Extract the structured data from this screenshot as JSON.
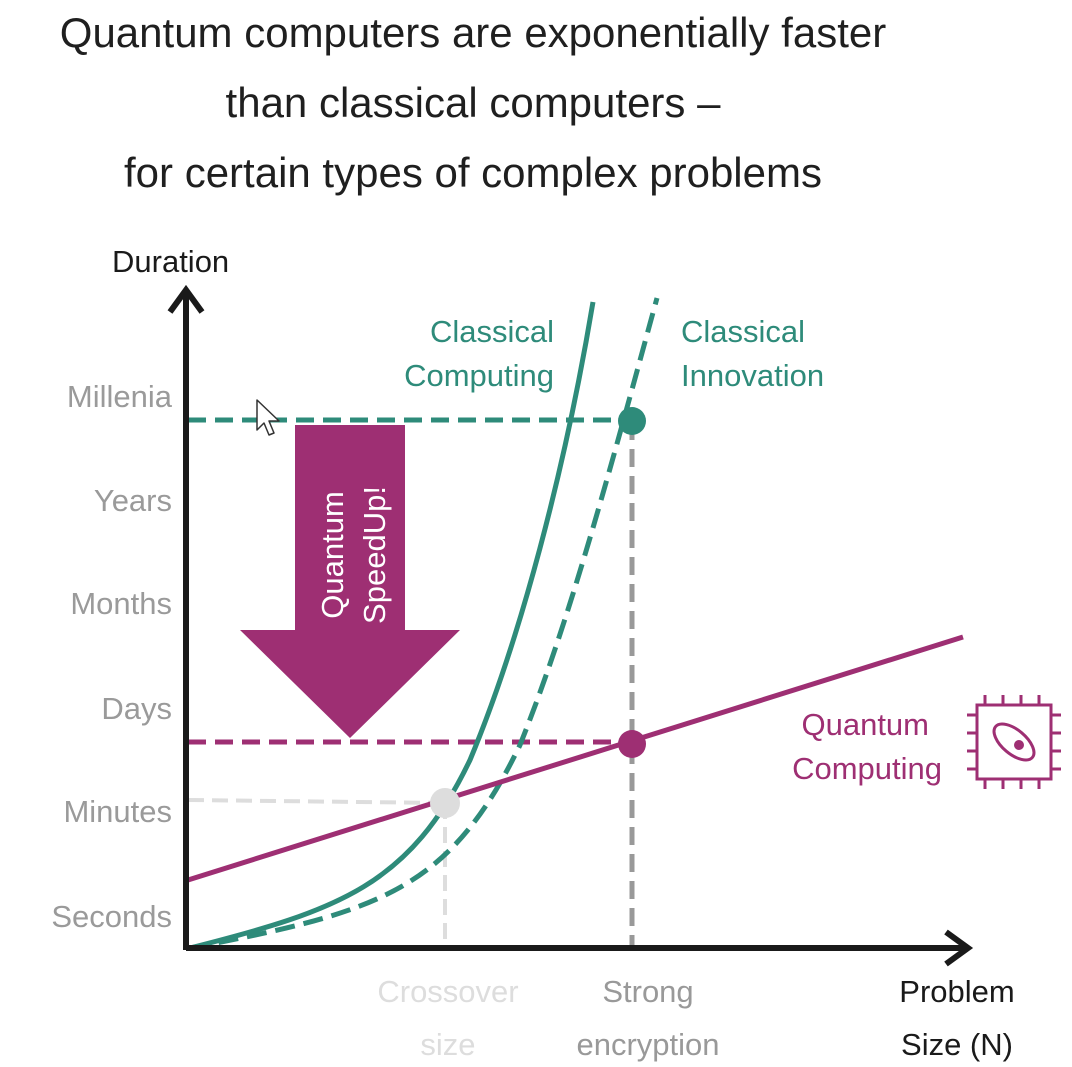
{
  "title": {
    "line1": "Quantum computers are exponentially faster",
    "line2": "than classical computers –",
    "line3": "for certain types of complex problems"
  },
  "axes": {
    "y_label": "Duration",
    "x_label_line1": "Problem",
    "x_label_line2": "Size (N)",
    "y_ticks": [
      "Millenia",
      "Years",
      "Months",
      "Days",
      "Minutes",
      "Seconds"
    ]
  },
  "x_markers": {
    "crossover_line1": "Crossover",
    "crossover_line2": "size",
    "encryption_line1": "Strong",
    "encryption_line2": "encryption"
  },
  "curves": {
    "classical_computing_line1": "Classical",
    "classical_computing_line2": "Computing",
    "classical_innovation_line1": "Classical",
    "classical_innovation_line2": "Innovation",
    "quantum_computing_line1": "Quantum",
    "quantum_computing_line2": "Computing"
  },
  "speedup_arrow": {
    "line1": "Quantum",
    "line2": "SpeedUp!"
  },
  "icons": {
    "quantum_chip": "quantum-chip-icon",
    "cursor": "mouse-cursor-icon"
  },
  "colors": {
    "classical": "#2e8b7a",
    "quantum": "#9e2f73",
    "axis": "#1a1a1a",
    "tick_text": "#9a9a9a",
    "crossover": "#dddddd",
    "encryption_guide": "#999999"
  }
}
